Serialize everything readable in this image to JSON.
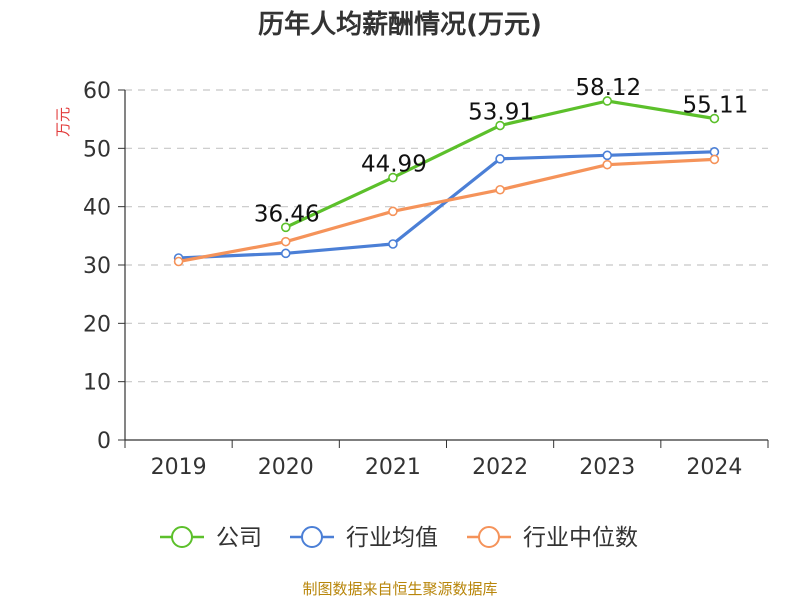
{
  "chart_data": {
    "type": "line",
    "title": "历年人均薪酬情况(万元)",
    "ylabel": "万元",
    "xlabel": "",
    "categories": [
      "2019",
      "2020",
      "2021",
      "2022",
      "2023",
      "2024"
    ],
    "ylim": [
      0,
      60
    ],
    "yticks": [
      "0",
      "10",
      "20",
      "30",
      "40",
      "50",
      "60"
    ],
    "grid": true,
    "legend_position": "bottom",
    "series": [
      {
        "name": "公司",
        "color": "#5cc02b",
        "values": [
          null,
          36.46,
          44.99,
          53.91,
          58.12,
          55.11
        ],
        "labels": [
          null,
          "36.46",
          "44.99",
          "53.91",
          "58.12",
          "55.11"
        ]
      },
      {
        "name": "行业均值",
        "color": "#4b7fd6",
        "values": [
          31.2,
          32.0,
          33.6,
          48.2,
          48.8,
          49.4
        ]
      },
      {
        "name": "行业中位数",
        "color": "#f5935a",
        "values": [
          30.6,
          34.0,
          39.2,
          42.9,
          47.2,
          48.1
        ]
      }
    ]
  },
  "source_text": "制图数据来自恒生聚源数据库"
}
